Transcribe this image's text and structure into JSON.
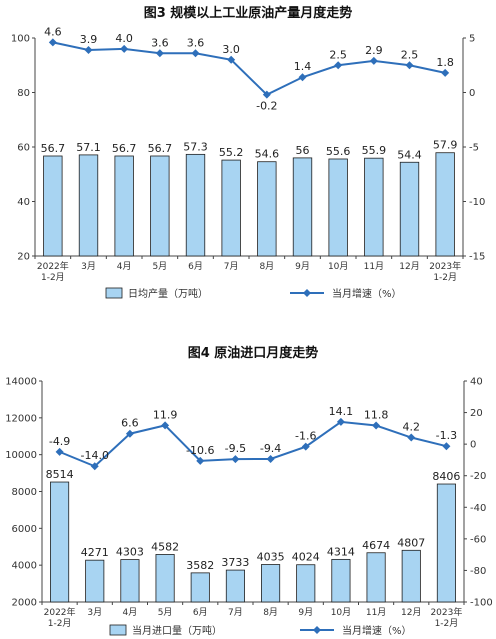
{
  "chart_data": [
    {
      "type": "bar",
      "title": "图3  规模以上工业原油产量月度走势",
      "categories": [
        "2022年\n1-2月",
        "3月",
        "4月",
        "5月",
        "6月",
        "7月",
        "8月",
        "9月",
        "10月",
        "11月",
        "12月",
        "2023年\n1-2月"
      ],
      "series": [
        {
          "name": "日均产量（万吨）",
          "type": "bar",
          "axis": "left",
          "values": [
            56.7,
            57.1,
            56.7,
            56.7,
            57.3,
            55.2,
            54.6,
            56.0,
            55.6,
            55.9,
            54.4,
            57.9
          ]
        },
        {
          "name": "当月增速（%）",
          "type": "line",
          "axis": "right",
          "values": [
            4.6,
            3.9,
            4.0,
            3.6,
            3.6,
            3.0,
            -0.2,
            1.4,
            2.5,
            2.9,
            2.5,
            1.8
          ]
        }
      ],
      "ylim": [
        20,
        100
      ],
      "yticks": [
        20,
        40,
        60,
        80,
        100
      ],
      "y2lim": [
        -15,
        5
      ],
      "y2ticks": [
        -15,
        -10,
        -5,
        0,
        5
      ],
      "legend": "bottom",
      "colors": {
        "bar_fill": "#a8d4f2",
        "bar_stroke": "#1f1f1f",
        "line": "#2e6fba"
      }
    },
    {
      "type": "bar",
      "title": "图4  原油进口月度走势",
      "categories": [
        "2022年\n1-2月",
        "3月",
        "4月",
        "5月",
        "6月",
        "7月",
        "8月",
        "9月",
        "10月",
        "11月",
        "12月",
        "2023年\n1-2月"
      ],
      "series": [
        {
          "name": "当月进口量（万吨）",
          "type": "bar",
          "axis": "left",
          "values": [
            8514,
            4271,
            4303,
            4582,
            3582,
            3733,
            4035,
            4024,
            4314,
            4674,
            4807,
            8406
          ]
        },
        {
          "name": "当月增速（%）",
          "type": "line",
          "axis": "right",
          "values": [
            -4.9,
            -14.0,
            6.6,
            11.9,
            -10.6,
            -9.5,
            -9.4,
            -1.6,
            14.1,
            11.8,
            4.2,
            -1.3
          ]
        }
      ],
      "ylim": [
        2000,
        14000
      ],
      "yticks": [
        2000,
        4000,
        6000,
        8000,
        10000,
        12000,
        14000
      ],
      "y2lim": [
        -100,
        40
      ],
      "y2ticks": [
        -100,
        -80,
        -60,
        -40,
        -20,
        0,
        20,
        40
      ],
      "legend": "bottom",
      "colors": {
        "bar_fill": "#a8d4f2",
        "bar_stroke": "#1f1f1f",
        "line": "#2e6fba"
      }
    }
  ]
}
